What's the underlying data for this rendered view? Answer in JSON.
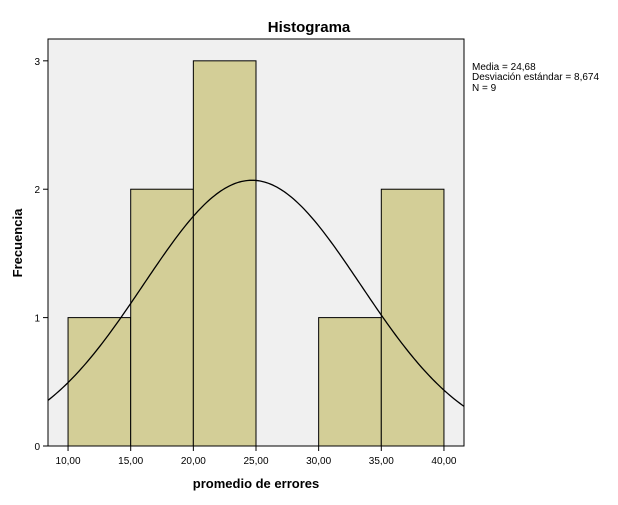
{
  "chart_data": {
    "type": "bar",
    "subtype": "histogram",
    "title": "Histograma",
    "xlabel": "promedio de errores",
    "ylabel": "Frecuencia",
    "bins": [
      {
        "from": 10,
        "to": 15,
        "count": 1
      },
      {
        "from": 15,
        "to": 20,
        "count": 2
      },
      {
        "from": 20,
        "to": 25,
        "count": 3
      },
      {
        "from": 25,
        "to": 30,
        "count": 0
      },
      {
        "from": 30,
        "to": 35,
        "count": 1
      },
      {
        "from": 35,
        "to": 40,
        "count": 2
      }
    ],
    "xlim": [
      8.4,
      41.6
    ],
    "ylim": [
      0,
      3.17
    ],
    "x_ticks": [
      10,
      15,
      20,
      25,
      30,
      35,
      40
    ],
    "x_tick_labels": [
      "10,00",
      "15,00",
      "20,00",
      "25,00",
      "30,00",
      "35,00",
      "40,00"
    ],
    "y_ticks": [
      0,
      1,
      2,
      3
    ],
    "y_tick_labels": [
      "0",
      "1",
      "2",
      "3"
    ],
    "normal_curve": {
      "mean": 24.68,
      "std": 8.674,
      "n": 9,
      "bin_width": 5
    },
    "stats": {
      "mean_label": "Media = 24,68",
      "std_label": "Desviación estándar = 8,674",
      "n_label": "N = 9"
    },
    "grid": false,
    "colors": {
      "plot_background": "#f0f0f0",
      "bar_fill": "#d3ce97",
      "bar_stroke": "#000000",
      "curve": "#000000",
      "axis": "#000000"
    }
  }
}
